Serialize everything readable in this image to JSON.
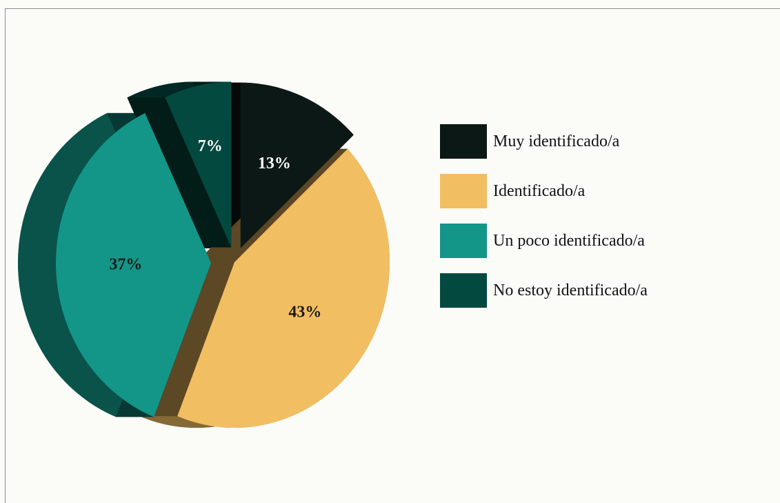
{
  "chart_data": {
    "type": "pie",
    "title": "",
    "style": "3d-exploded",
    "slices": [
      {
        "label": "Muy identificado/a",
        "value": 13,
        "display": "13%",
        "color": "#0c1815",
        "label_color": "#ffffff"
      },
      {
        "label": "Identificado/a",
        "value": 43,
        "display": "43%",
        "color": "#f1be62",
        "label_color": "#1a1a1a"
      },
      {
        "label": "Un poco identificado/a",
        "value": 37,
        "display": "37%",
        "color": "#139688",
        "label_color": "#1a1a1a"
      },
      {
        "label": "No estoy identificado/a",
        "value": 7,
        "display": "7%",
        "color": "#04493f",
        "label_color": "#ffffff"
      }
    ],
    "legend_position": "right"
  }
}
